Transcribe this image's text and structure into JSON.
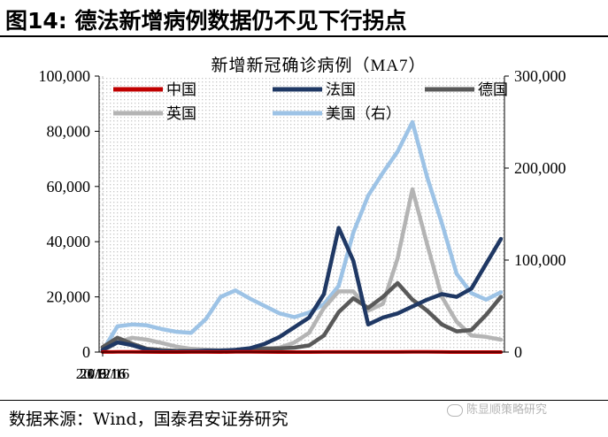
{
  "figure": {
    "title": "图14: 德法新增病例数据仍不见下行拐点",
    "source": "数据来源：Wind，国泰君安证券研究",
    "watermark": "陈显顺策略研究"
  },
  "chart_data": {
    "type": "line",
    "title": "新增新冠确诊病例（MA7）",
    "x_ticks": [
      "20/3/16",
      "20/6/16",
      "20/9/16",
      "20/12/16",
      "21/3/16"
    ],
    "x": [
      "20/3/16",
      "20/3/30",
      "20/4/13",
      "20/4/27",
      "20/5/11",
      "20/5/25",
      "20/6/8",
      "20/6/22",
      "20/7/6",
      "20/7/20",
      "20/8/3",
      "20/8/17",
      "20/8/31",
      "20/9/14",
      "20/9/28",
      "20/10/12",
      "20/10/26",
      "20/11/9",
      "20/11/23",
      "20/12/7",
      "20/12/21",
      "21/1/4",
      "21/1/18",
      "21/2/1",
      "21/2/15",
      "21/3/1",
      "21/3/15",
      "21/3/29"
    ],
    "left_axis": {
      "ylim": [
        0,
        100000
      ],
      "ticks": [
        "0",
        "20,000",
        "40,000",
        "60,000",
        "80,000",
        "100,000"
      ]
    },
    "right_axis": {
      "ylim": [
        0,
        300000
      ],
      "ticks": [
        "0",
        "100,000",
        "200,000",
        "300,000"
      ]
    },
    "series": [
      {
        "name": "中国",
        "color": "#c00000",
        "axis": "left",
        "values": [
          40,
          60,
          90,
          20,
          10,
          10,
          20,
          20,
          10,
          60,
          80,
          30,
          10,
          10,
          10,
          20,
          20,
          20,
          20,
          20,
          20,
          60,
          110,
          40,
          10,
          10,
          10,
          10
        ]
      },
      {
        "name": "法国",
        "color": "#1f3864",
        "axis": "left",
        "values": [
          800,
          3500,
          2500,
          900,
          300,
          150,
          300,
          500,
          550,
          800,
          1400,
          3000,
          5500,
          9000,
          12500,
          21000,
          45000,
          33000,
          10000,
          12500,
          14000,
          16500,
          19000,
          21000,
          20000,
          23000,
          32000,
          41000
        ]
      },
      {
        "name": "德国",
        "color": "#595959",
        "axis": "left",
        "values": [
          1800,
          5200,
          3000,
          1200,
          700,
          450,
          350,
          420,
          450,
          550,
          850,
          1300,
          1300,
          1600,
          2400,
          6000,
          14500,
          19500,
          16000,
          20000,
          25000,
          19000,
          15000,
          10000,
          7500,
          8000,
          13500,
          20000
        ]
      },
      {
        "name": "英国",
        "color": "#b4b4b4",
        "axis": "left",
        "values": [
          400,
          3500,
          5200,
          4500,
          3300,
          2000,
          1200,
          900,
          650,
          700,
          850,
          1100,
          1600,
          3500,
          7000,
          16000,
          22000,
          22000,
          15000,
          17500,
          34000,
          59000,
          39000,
          20000,
          11000,
          6000,
          5500,
          4500
        ]
      },
      {
        "name": "美国（右）",
        "color": "#9dc3e6",
        "axis": "right",
        "values": [
          1500,
          28000,
          30000,
          29000,
          25000,
          22000,
          21000,
          36000,
          60000,
          67000,
          58000,
          50000,
          42000,
          38000,
          43000,
          52000,
          72000,
          130000,
          170000,
          195000,
          218000,
          250000,
          190000,
          140000,
          85000,
          64000,
          57000,
          65000
        ]
      }
    ],
    "legend_position": "top"
  }
}
